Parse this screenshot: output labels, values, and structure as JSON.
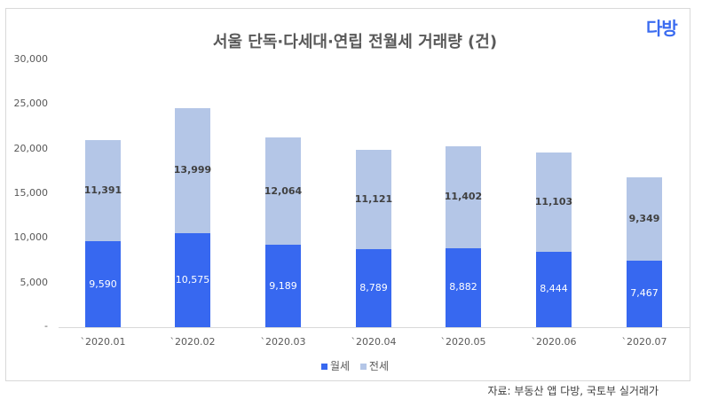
{
  "header": {
    "title": "서울 단독·다세대·연립 전월세 거래량 (건)",
    "logo": "다방"
  },
  "colors": {
    "wolse": "#3768f0",
    "jeonse": "#b4c6e7"
  },
  "legend": [
    {
      "label": "월세",
      "color": "#3768f0"
    },
    {
      "label": "전세",
      "color": "#b4c6e7"
    }
  ],
  "source": "자료: 부동산 앱 다방, 국토부 실거래가",
  "y_ticks": [
    "30,000",
    "25,000",
    "20,000",
    "15,000",
    "10,000",
    "5,000",
    "-"
  ],
  "bars": [
    {
      "category": "`2020.01",
      "wolse": "9,590",
      "jeonse": "11,391"
    },
    {
      "category": "`2020.02",
      "wolse": "10,575",
      "jeonse": "13,999"
    },
    {
      "category": "`2020.03",
      "wolse": "9,189",
      "jeonse": "12,064"
    },
    {
      "category": "`2020.04",
      "wolse": "8,789",
      "jeonse": "11,121"
    },
    {
      "category": "`2020.05",
      "wolse": "8,882",
      "jeonse": "11,402"
    },
    {
      "category": "`2020.06",
      "wolse": "8,444",
      "jeonse": "11,103"
    },
    {
      "category": "`2020.07",
      "wolse": "7,467",
      "jeonse": "9,349"
    }
  ],
  "chart_data": {
    "type": "bar",
    "stacked": true,
    "title": "서울 단독·다세대·연립 전월세 거래량 (건)",
    "categories": [
      "`2020.01",
      "`2020.02",
      "`2020.03",
      "`2020.04",
      "`2020.05",
      "`2020.06",
      "`2020.07"
    ],
    "series": [
      {
        "name": "월세",
        "color": "#3768f0",
        "values": [
          9590,
          10575,
          9189,
          8789,
          8882,
          8444,
          7467
        ]
      },
      {
        "name": "전세",
        "color": "#b4c6e7",
        "values": [
          11391,
          13999,
          12064,
          11121,
          11402,
          11103,
          9349
        ]
      }
    ],
    "xlabel": "",
    "ylabel": "",
    "ylim": [
      0,
      30000
    ],
    "y_ticks": [
      0,
      5000,
      10000,
      15000,
      20000,
      25000,
      30000
    ],
    "grid": false,
    "legend_position": "bottom",
    "data_labels": true,
    "annotations": [
      "자료: 부동산 앱 다방, 국토부 실거래가"
    ]
  }
}
